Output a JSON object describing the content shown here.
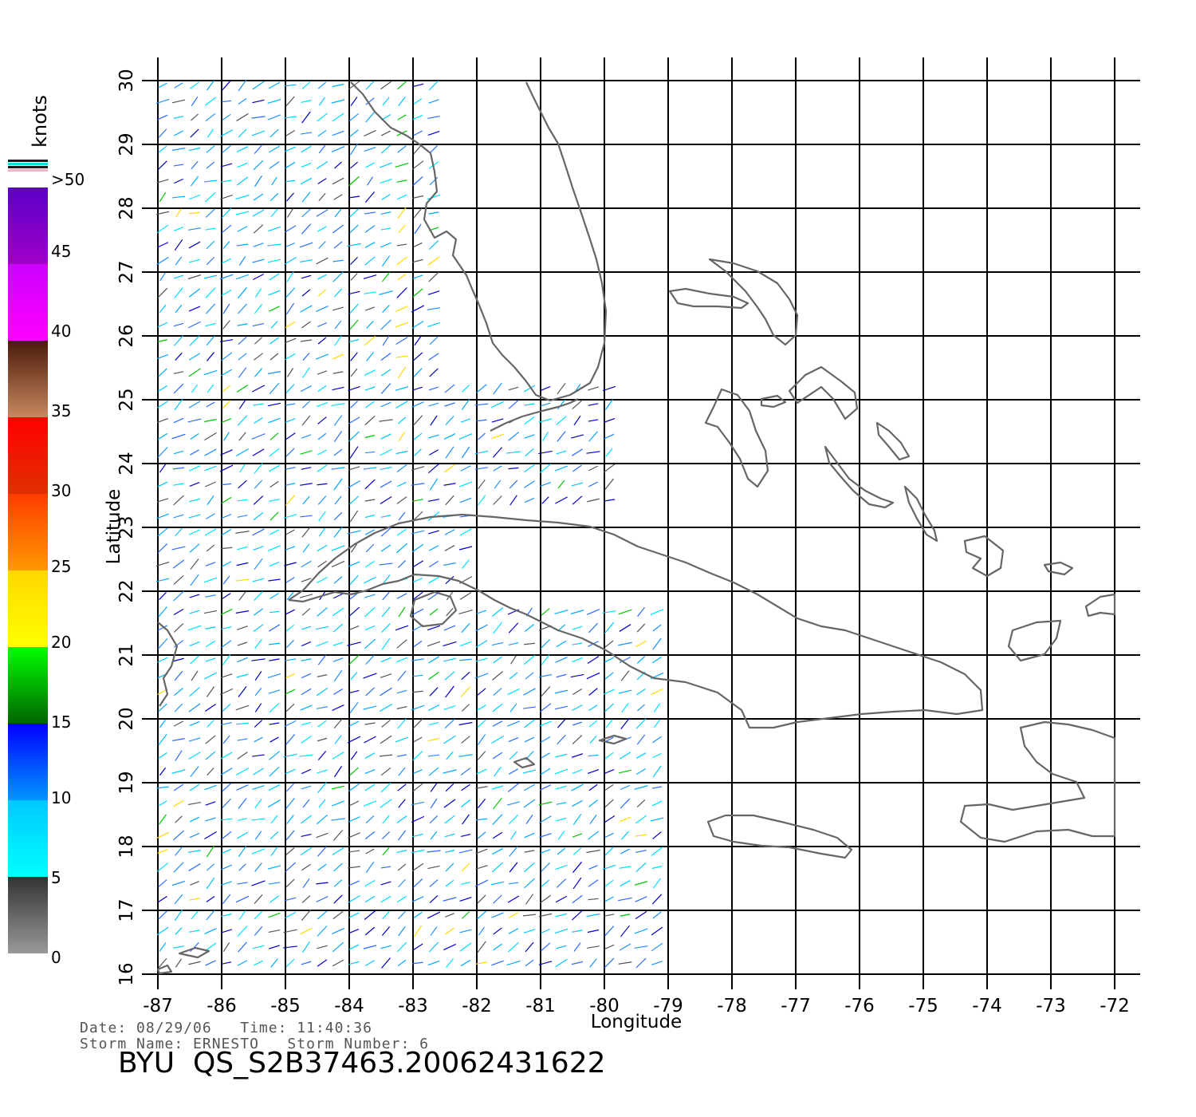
{
  "map": {
    "longitude_ticks": [
      "-87",
      "-86",
      "-85",
      "-84",
      "-83",
      "-82",
      "-81",
      "-80",
      "-79",
      "-78",
      "-77",
      "-76",
      "-75",
      "-74",
      "-73",
      "-72"
    ],
    "latitude_ticks": [
      "16",
      "17",
      "18",
      "19",
      "20",
      "21",
      "22",
      "23",
      "24",
      "25",
      "26",
      "27",
      "28",
      "29",
      "30"
    ],
    "xlabel": "Longitude",
    "ylabel": "Latitude",
    "lon_range": [
      -87,
      -72
    ],
    "lat_range": [
      16,
      30
    ],
    "grid": true,
    "coast_color": "#666666",
    "vector_field": "wind vectors colored by speed (knots)"
  },
  "legend": {
    "unit": "knots",
    "levels": [
      {
        "label": "0",
        "color_top": "#333333",
        "color_bottom": "#999999"
      },
      {
        "label": "5",
        "color_top": "#00c8ff",
        "color_bottom": "#00ffff"
      },
      {
        "label": "10",
        "color_top": "#0000ff",
        "color_bottom": "#0096ff"
      },
      {
        "label": "15",
        "color_top": "#00ff00",
        "color_bottom": "#006400"
      },
      {
        "label": "20",
        "color_top": "#ffd700",
        "color_bottom": "#ffff00"
      },
      {
        "label": "25",
        "color_top": "#ff3c00",
        "color_bottom": "#ff9900"
      },
      {
        "label": "30",
        "color_top": "#ff0000",
        "color_bottom": "#e03000"
      },
      {
        "label": "35",
        "color_top": "#4a1a0a",
        "color_bottom": "#c88860"
      },
      {
        "label": "40",
        "color_top": "#cc00ff",
        "color_bottom": "#ff00ff"
      },
      {
        "label": "45",
        "color_top": "#5a00c8",
        "color_bottom": "#a000c8"
      },
      {
        "label": ">50",
        "color_top": "#5a00c8",
        "color_bottom": "#5a00c8"
      }
    ]
  },
  "info": {
    "line1": "Date: 08/29/06   Time: 11:40:36",
    "line2": "Storm Name: ERNESTO   Storm Number: 6",
    "file_id": "BYU  QS_S2B37463.20062431622"
  }
}
